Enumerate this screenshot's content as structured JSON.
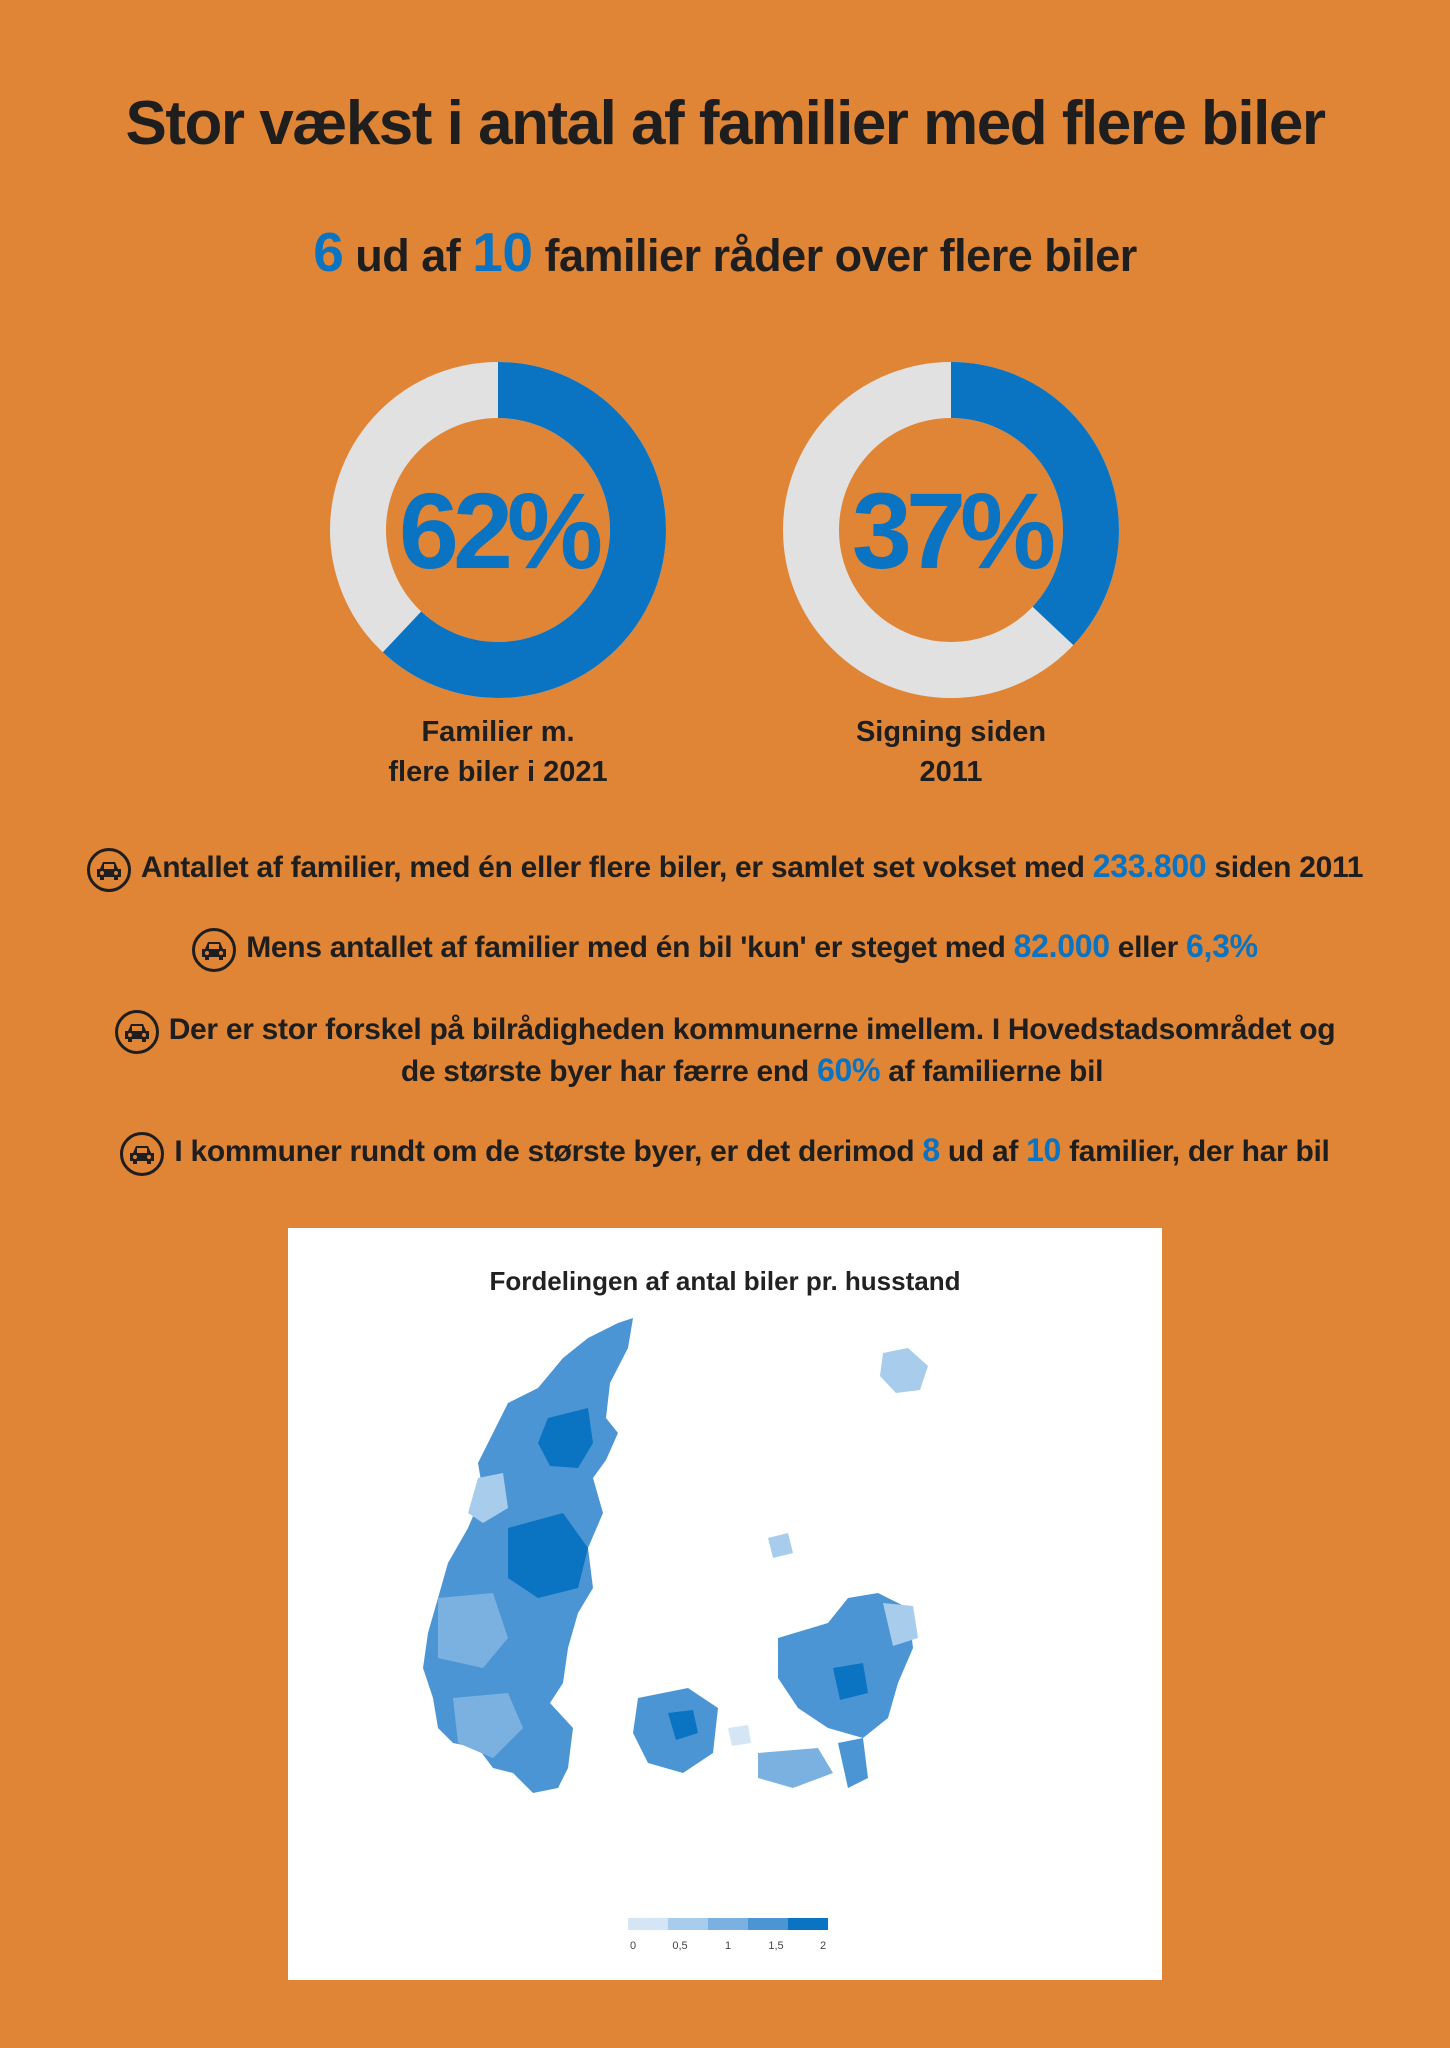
{
  "title": "Stor vækst i antal af familier med flere biler",
  "subtitle": {
    "n1": "6",
    "t1": " ud af ",
    "n2": "10",
    "t2": " familier råder over flere biler"
  },
  "donuts": [
    {
      "value": "62%",
      "fraction": 0.62,
      "label1": "Familier m.",
      "label2": "flere biler i 2021"
    },
    {
      "value": "37%",
      "fraction": 0.37,
      "label1": "Signing siden",
      "label2": "2011"
    }
  ],
  "colors": {
    "background": "#E08535",
    "accent": "#0A73C2",
    "donut_track": "#E1E1E1",
    "text": "#1e1e1e"
  },
  "facts": [
    {
      "a": "Antallet af familier, med én eller flere biler, er samlet set vokset med ",
      "h1": "233.800",
      "b": " siden 2011",
      "icon": "car-icon"
    },
    {
      "a": "Mens antallet af familier med én bil 'kun' er steget med ",
      "h1": "82.000",
      "b": " eller ",
      "h2": "6,3%",
      "icon": "car-icon"
    },
    {
      "l1": "Der er stor forskel på bilrådigheden kommunerne imellem. I Hovedstadsområdet og",
      "a": "de største byer har færre end ",
      "h1": "60%",
      "b": " af familierne bil",
      "icon": "car-icon"
    },
    {
      "a": " I kommuner rundt om de største byer, er det derimod ",
      "h1": "8",
      "b": " ud af ",
      "h2": "10",
      "c": " familier, der har bil",
      "icon": "car-icon"
    }
  ],
  "map": {
    "title": "Fordelingen af antal biler pr. husstand",
    "legend_ticks": [
      "0",
      "0,5",
      "1",
      "1,5",
      "2"
    ],
    "legend_colors": [
      "#D4E5F6",
      "#A8CCEC",
      "#7BB1E0",
      "#4C95D4",
      "#0A73C2"
    ]
  }
}
